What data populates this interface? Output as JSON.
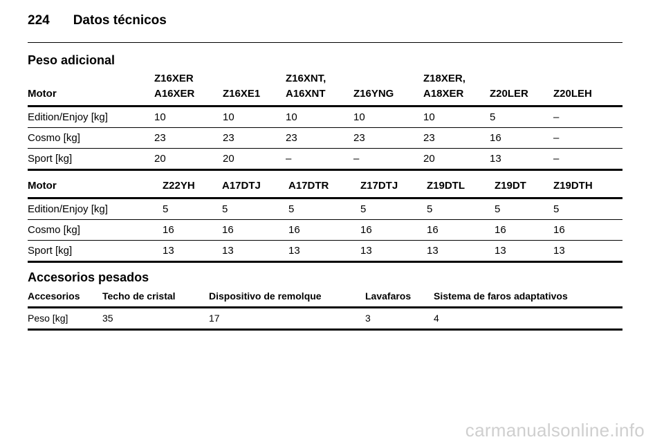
{
  "header": {
    "page_number": "224",
    "title": "Datos técnicos"
  },
  "section1": {
    "title": "Peso adicional"
  },
  "table1": {
    "headers": [
      [
        "Motor"
      ],
      [
        "Z16XER",
        "A16XER"
      ],
      [
        "Z16XE1"
      ],
      [
        "Z16XNT,",
        "A16XNT"
      ],
      [
        "Z16YNG"
      ],
      [
        "Z18XER,",
        "A18XER"
      ],
      [
        "Z20LER"
      ],
      [
        "Z20LEH"
      ]
    ],
    "rows": [
      [
        "Edition/Enjoy [kg]",
        "10",
        "10",
        "10",
        "10",
        "10",
        "5",
        "–"
      ],
      [
        "Cosmo [kg]",
        "23",
        "23",
        "23",
        "23",
        "23",
        "16",
        "–"
      ],
      [
        "Sport [kg]",
        "20",
        "20",
        "–",
        "–",
        "20",
        "13",
        "–"
      ]
    ]
  },
  "table2": {
    "headers": [
      "Motor",
      "Z22YH",
      "A17DTJ",
      "A17DTR",
      "Z17DTJ",
      "Z19DTL",
      "Z19DT",
      "Z19DTH"
    ],
    "rows": [
      [
        "Edition/Enjoy [kg]",
        "5",
        "5",
        "5",
        "5",
        "5",
        "5",
        "5"
      ],
      [
        "Cosmo [kg]",
        "16",
        "16",
        "16",
        "16",
        "16",
        "16",
        "16"
      ],
      [
        "Sport [kg]",
        "13",
        "13",
        "13",
        "13",
        "13",
        "13",
        "13"
      ]
    ]
  },
  "section2": {
    "title": "Accesorios pesados"
  },
  "table3": {
    "headers": [
      "Accesorios",
      "Techo de cristal",
      "Dispositivo de remolque",
      "Lavafaros",
      "Sistema de faros adaptativos"
    ],
    "rows": [
      [
        "Peso [kg]",
        "35",
        "17",
        "3",
        "4"
      ]
    ]
  },
  "watermark": "carmanualsonline.info"
}
